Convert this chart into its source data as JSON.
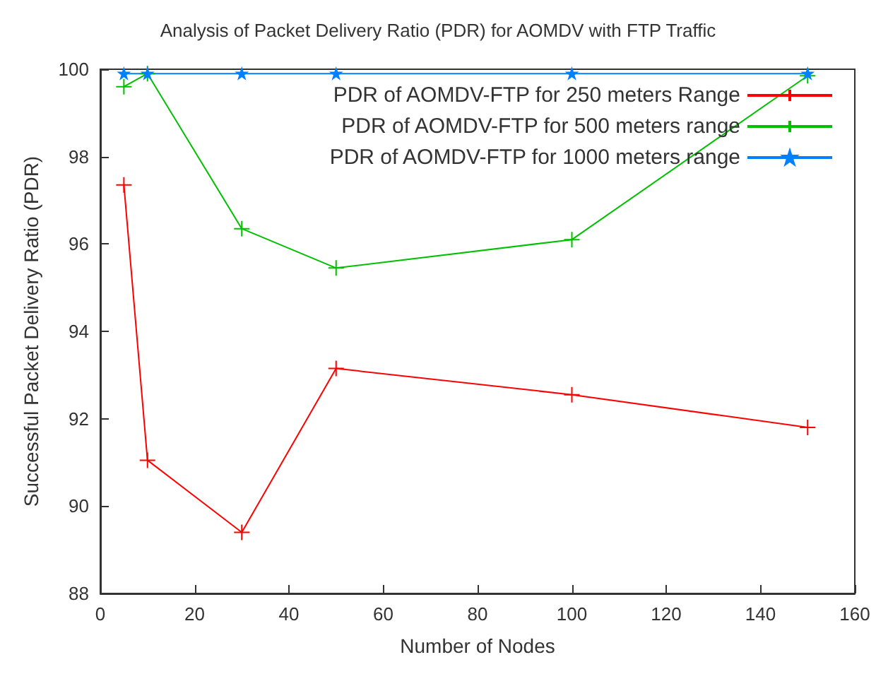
{
  "chart_data": {
    "type": "line",
    "title": "Analysis of Packet Delivery Ratio (PDR) for AOMDV with FTP Traffic",
    "xlabel": "Number of Nodes",
    "ylabel": "Successful Packet Delivery Ratio (PDR)",
    "x": [
      5,
      10,
      30,
      50,
      100,
      150
    ],
    "series": [
      {
        "name": "PDR of AOMDV-FTP for 250 meters Range",
        "color": "#ff0000",
        "marker": "cross",
        "values": [
          97.35,
          91.05,
          89.4,
          93.15,
          92.55,
          91.8
        ]
      },
      {
        "name": "PDR of AOMDV-FTP for 500 meters range",
        "color": "#00c000",
        "marker": "cross",
        "values": [
          99.6,
          99.9,
          96.35,
          95.45,
          96.1,
          99.85
        ]
      },
      {
        "name": "PDR of AOMDV-FTP for 1000 meters range",
        "color": "#0080ff",
        "marker": "star",
        "values": [
          99.9,
          99.9,
          99.9,
          99.9,
          99.9,
          99.9
        ]
      }
    ],
    "xlim": [
      0,
      160
    ],
    "xticks": [
      0,
      20,
      40,
      60,
      80,
      100,
      120,
      140,
      160
    ],
    "ylim": [
      88,
      100
    ],
    "yticks": [
      88,
      90,
      92,
      94,
      96,
      98,
      100
    ],
    "grid": false,
    "legend": "top right"
  }
}
